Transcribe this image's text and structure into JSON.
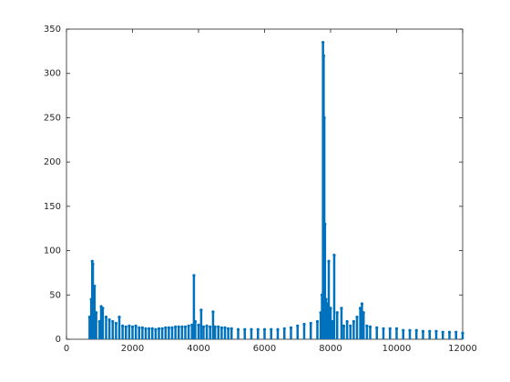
{
  "chart_data": {
    "type": "stem",
    "color": "#0072bd",
    "x": [
      700,
      750,
      780,
      800,
      850,
      900,
      1000,
      1050,
      1100,
      1200,
      1300,
      1400,
      1500,
      1600,
      1700,
      1800,
      1900,
      2000,
      2100,
      2200,
      2300,
      2400,
      2500,
      2600,
      2700,
      2800,
      2900,
      3000,
      3100,
      3200,
      3300,
      3400,
      3500,
      3600,
      3700,
      3800,
      3860,
      3900,
      4000,
      4080,
      4150,
      4250,
      4350,
      4440,
      4500,
      4600,
      4700,
      4800,
      4900,
      5000,
      5200,
      5400,
      5600,
      5800,
      6000,
      6200,
      6400,
      6600,
      6800,
      7000,
      7200,
      7400,
      7600,
      7700,
      7740,
      7770,
      7790,
      7810,
      7830,
      7860,
      7900,
      7945,
      8000,
      8050,
      8110,
      8200,
      8330,
      8400,
      8500,
      8600,
      8700,
      8800,
      8900,
      8950,
      9000,
      9100,
      9200,
      9400,
      9600,
      9800,
      10000,
      10200,
      10400,
      10600,
      10800,
      11000,
      11200,
      11400,
      11600,
      11800,
      12000
    ],
    "values": [
      25,
      45,
      88,
      85,
      60,
      30,
      20,
      37,
      35,
      25,
      22,
      20,
      18,
      25,
      15,
      14,
      15,
      14,
      15,
      13,
      13,
      12,
      12,
      12,
      11,
      12,
      12,
      13,
      13,
      13,
      14,
      14,
      14,
      14,
      15,
      16,
      72,
      20,
      16,
      33,
      14,
      15,
      14,
      31,
      14,
      14,
      13,
      13,
      12,
      12,
      11,
      11,
      11,
      11,
      11,
      11,
      11,
      12,
      13,
      15,
      17,
      18,
      20,
      30,
      50,
      335,
      320,
      250,
      130,
      45,
      40,
      88,
      35,
      20,
      95,
      30,
      35,
      15,
      20,
      15,
      20,
      25,
      35,
      40,
      30,
      15,
      14,
      13,
      12,
      12,
      12,
      10,
      10,
      10,
      9,
      9,
      9,
      8,
      8,
      8,
      7
    ],
    "xlim": [
      0,
      12000
    ],
    "xticks": [
      0,
      2000,
      4000,
      6000,
      8000,
      10000,
      12000
    ],
    "ylim": [
      0,
      350
    ],
    "yticks": [
      0,
      50,
      100,
      150,
      200,
      250,
      300,
      350
    ]
  }
}
